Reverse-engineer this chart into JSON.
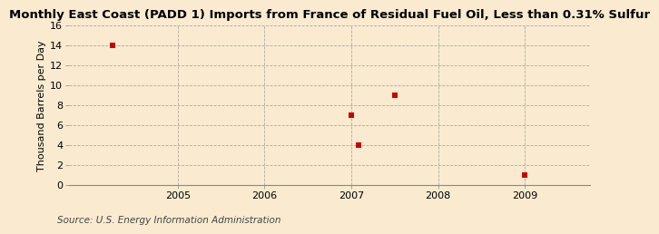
{
  "title": "Monthly East Coast (PADD 1) Imports from France of Residual Fuel Oil, Less than 0.31% Sulfur",
  "ylabel": "Thousand Barrels per Day",
  "source": "Source: U.S. Energy Information Administration",
  "background_color": "#faebd0",
  "plot_bg_color": "#faebd0",
  "marker_color": "#cc0000",
  "points_x": [
    2004.25,
    2007.0,
    2007.08,
    2007.5,
    2009.0
  ],
  "points_y": [
    14,
    7,
    4,
    9,
    1
  ],
  "xlim": [
    2003.75,
    2009.75
  ],
  "ylim": [
    0,
    16
  ],
  "yticks": [
    0,
    2,
    4,
    6,
    8,
    10,
    12,
    14,
    16
  ],
  "xticks": [
    2005,
    2006,
    2007,
    2008,
    2009
  ],
  "title_fontsize": 9.5,
  "label_fontsize": 8,
  "tick_fontsize": 8,
  "source_fontsize": 7.5,
  "grid_color": "#aaaaaa",
  "marker_size": 4
}
